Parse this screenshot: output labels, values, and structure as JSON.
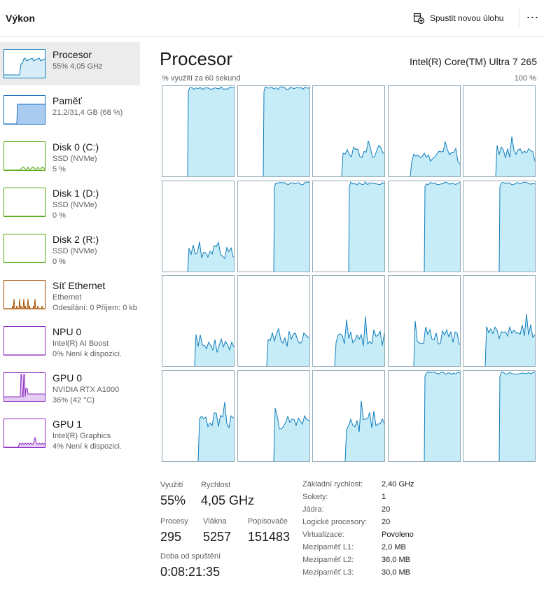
{
  "header": {
    "title": "Výkon",
    "new_task_label": "Spustit novou úlohu",
    "more_label": "⋯"
  },
  "sidebar": {
    "items": [
      {
        "title": "Procesor",
        "sub1": "55% 4,05 GHz",
        "sub2": "",
        "graph": "cpu",
        "color": "#117dbb",
        "fill": "#d7eef8"
      },
      {
        "title": "Paměť",
        "sub1": "21,2/31,4 GB (68 %)",
        "sub2": "",
        "graph": "memory",
        "color": "#1b6ebf",
        "fill": "#a9cbf0"
      },
      {
        "title": "Disk 0 (C:)",
        "sub1": "SSD (NVMe)",
        "sub2": "5 %",
        "graph": "disk",
        "color": "#4da60c",
        "fill": "#e6f3da"
      },
      {
        "title": "Disk 1 (D:)",
        "sub1": "SSD (NVMe)",
        "sub2": "0 %",
        "graph": "empty",
        "color": "#4da60c",
        "fill": "#e6f3da"
      },
      {
        "title": "Disk 2 (R:)",
        "sub1": "SSD (NVMe)",
        "sub2": "0 %",
        "graph": "empty",
        "color": "#4da60c",
        "fill": "#e6f3da"
      },
      {
        "title": "Síť Ethernet",
        "sub1": "Ethernet",
        "sub2": "Odesílání: 0 Příjem: 0 kb",
        "graph": "net",
        "color": "#a74f01",
        "fill": "#fbe9dc"
      },
      {
        "title": "NPU 0",
        "sub1": "Intel(R) AI Boost",
        "sub2": "0% Není k dispozici.",
        "graph": "empty",
        "color": "#8e2ec2",
        "fill": "#ece2f6"
      },
      {
        "title": "GPU 0",
        "sub1": "NVIDIA RTX A1000",
        "sub2": "36% (42 °C)",
        "graph": "gpu0",
        "color": "#8e2ec2",
        "fill": "#e3cdf3"
      },
      {
        "title": "GPU 1",
        "sub1": "Intel(R) Graphics",
        "sub2": "4% Není k dispozici.",
        "graph": "gpu1",
        "color": "#8e2ec2",
        "fill": "#e3cdf3"
      }
    ]
  },
  "main": {
    "title": "Procesor",
    "cpu_name": "Intel(R) Core(TM) Ultra 7 265",
    "axis_label": "% využití za 60 sekund",
    "axis_max": "100 %",
    "graph_color": "#117dbb",
    "graph_fill": "#c6ecf8",
    "cores": [
      {
        "type": "full",
        "start": 0.35
      },
      {
        "type": "full",
        "start": 0.35
      },
      {
        "type": "low",
        "start": 0.4,
        "level": 0.28
      },
      {
        "type": "low",
        "start": 0.3,
        "level": 0.22
      },
      {
        "type": "low",
        "start": 0.45,
        "level": 0.25
      },
      {
        "type": "low",
        "start": 0.35,
        "level": 0.22
      },
      {
        "type": "full",
        "start": 0.5
      },
      {
        "type": "full",
        "start": 0.5
      },
      {
        "type": "full",
        "start": 0.5
      },
      {
        "type": "full",
        "start": 0.5
      },
      {
        "type": "low",
        "start": 0.45,
        "level": 0.22
      },
      {
        "type": "low",
        "start": 0.4,
        "level": 0.3
      },
      {
        "type": "low",
        "start": 0.3,
        "level": 0.3
      },
      {
        "type": "low",
        "start": 0.35,
        "level": 0.32
      },
      {
        "type": "low",
        "start": 0.3,
        "level": 0.38
      },
      {
        "type": "low",
        "start": 0.5,
        "level": 0.45
      },
      {
        "type": "low",
        "start": 0.5,
        "level": 0.42
      },
      {
        "type": "low",
        "start": 0.45,
        "level": 0.4
      },
      {
        "type": "full",
        "start": 0.5
      },
      {
        "type": "full",
        "start": 0.5
      }
    ]
  },
  "stats": {
    "utilization_label": "Využití",
    "utilization_value": "55%",
    "speed_label": "Rychlost",
    "speed_value": "4,05 GHz",
    "processes_label": "Procesy",
    "processes_value": "295",
    "threads_label": "Vlákna",
    "threads_value": "5257",
    "handles_label": "Popisovače",
    "handles_value": "151483",
    "uptime_label": "Doba od spuštění",
    "uptime_value": "0:08:21:35"
  },
  "details": [
    {
      "key": "Základní rychlost:",
      "value": "2,40 GHz"
    },
    {
      "key": "Sokety:",
      "value": "1"
    },
    {
      "key": "Jádra:",
      "value": "20"
    },
    {
      "key": "Logické procesory:",
      "value": "20"
    },
    {
      "key": "Virtualizace:",
      "value": "Povoleno"
    },
    {
      "key": "Mezipaměť L1:",
      "value": "2,0 MB"
    },
    {
      "key": "Mezipaměť L2:",
      "value": "36,0 MB"
    },
    {
      "key": "Mezipaměť L3:",
      "value": "30,0 MB"
    }
  ]
}
